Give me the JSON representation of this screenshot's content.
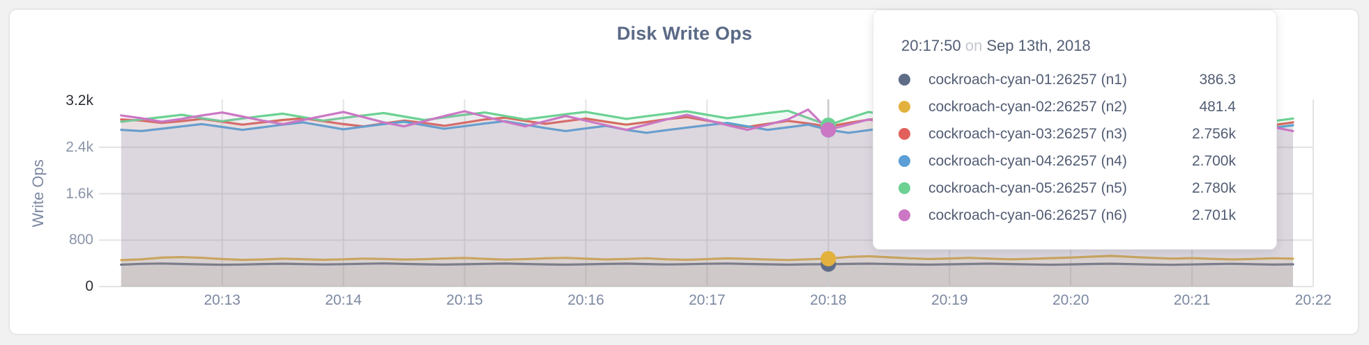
{
  "chart_data": {
    "type": "area",
    "title": "Disk Write Ops",
    "ylabel": "Write Ops",
    "ylim": [
      0,
      3200
    ],
    "grid": true,
    "legend_position": "tooltip",
    "colors": {
      "grid": "#e3e3e4",
      "hover_line": "#c9c9cb",
      "axis_text": "#8a94a8",
      "axis_text_emphasis": "#2b2e35"
    },
    "y_ticks": [
      {
        "label": "0",
        "value": 0,
        "emph": true
      },
      {
        "label": "800",
        "value": 800,
        "emph": false
      },
      {
        "label": "1.6k",
        "value": 1600,
        "emph": false
      },
      {
        "label": "2.4k",
        "value": 2400,
        "emph": false
      },
      {
        "label": "3.2k",
        "value": 3200,
        "emph": true
      }
    ],
    "x_ticks": [
      {
        "label": "20:13",
        "sec": 780
      },
      {
        "label": "20:14",
        "sec": 840
      },
      {
        "label": "20:15",
        "sec": 900
      },
      {
        "label": "20:16",
        "sec": 960
      },
      {
        "label": "20:17",
        "sec": 1020
      },
      {
        "label": "20:18",
        "sec": 1080
      },
      {
        "label": "20:19",
        "sec": 1140
      },
      {
        "label": "20:20",
        "sec": 1200
      },
      {
        "label": "20:21",
        "sec": 1260
      },
      {
        "label": "20:22",
        "sec": 1320
      }
    ],
    "x_domain_sec": [
      728,
      1320
    ],
    "point_start_sec": 730,
    "point_step_sec": 10,
    "hover_index": 35,
    "series": [
      {
        "name": "cockroach-cyan-01:26257 (n1)",
        "color": "#5F6C87",
        "values": [
          378,
          392,
          398,
          390,
          382,
          376,
          380,
          388,
          394,
          387,
          381,
          386,
          393,
          399,
          391,
          384,
          379,
          385,
          392,
          397,
          389,
          382,
          377,
          384,
          391,
          396,
          388,
          381,
          386,
          393,
          398,
          390,
          383,
          378,
          384,
          386.3,
          391,
          396,
          389,
          382,
          377,
          383,
          390,
          395,
          388,
          381,
          376,
          382,
          389,
          394,
          387,
          380,
          375,
          381,
          388,
          393,
          386,
          379,
          383
        ]
      },
      {
        "name": "cockroach-cyan-02:26257 (n2)",
        "color": "#E3B13E",
        "values": [
          455,
          470,
          498,
          508,
          495,
          475,
          460,
          468,
          480,
          472,
          462,
          470,
          482,
          476,
          466,
          472,
          484,
          492,
          478,
          465,
          473,
          486,
          495,
          480,
          468,
          476,
          488,
          470,
          462,
          474,
          486,
          478,
          466,
          458,
          470,
          481.4,
          510,
          522,
          505,
          488,
          475,
          484,
          495,
          482,
          470,
          478,
          490,
          500,
          515,
          528,
          512,
          495,
          482,
          490,
          478,
          468,
          476,
          488,
          480
        ]
      },
      {
        "name": "cockroach-cyan-03:26257 (n3)",
        "color": "#E2605C",
        "values": [
          2880,
          2860,
          2820,
          2850,
          2890,
          2840,
          2790,
          2830,
          2870,
          2900,
          2850,
          2800,
          2760,
          2810,
          2860,
          2820,
          2770,
          2825,
          2880,
          2910,
          2855,
          2805,
          2850,
          2895,
          2840,
          2790,
          2835,
          2885,
          2920,
          2860,
          2800,
          2750,
          2805,
          2855,
          2810,
          2756,
          2820,
          2875,
          2915,
          2860,
          2810,
          2855,
          2900,
          2845,
          2795,
          2840,
          2890,
          2930,
          2870,
          2815,
          2860,
          2905,
          2850,
          2800,
          2845,
          2890,
          2835,
          2780,
          2830
        ]
      },
      {
        "name": "cockroach-cyan-04:26257 (n4)",
        "color": "#5C9FD6",
        "values": [
          2700,
          2680,
          2720,
          2760,
          2800,
          2750,
          2700,
          2745,
          2790,
          2830,
          2770,
          2710,
          2755,
          2800,
          2840,
          2780,
          2720,
          2765,
          2810,
          2850,
          2790,
          2730,
          2680,
          2725,
          2770,
          2700,
          2650,
          2695,
          2740,
          2780,
          2820,
          2760,
          2700,
          2745,
          2790,
          2700,
          2650,
          2695,
          2740,
          2785,
          2825,
          2765,
          2705,
          2750,
          2795,
          2835,
          2775,
          2715,
          2760,
          2805,
          2845,
          2785,
          2725,
          2770,
          2815,
          2855,
          2795,
          2735,
          2780
        ]
      },
      {
        "name": "cockroach-cyan-05:26257 (n5)",
        "color": "#6CD193",
        "values": [
          2840,
          2880,
          2920,
          2960,
          2900,
          2850,
          2895,
          2940,
          2980,
          2920,
          2860,
          2905,
          2950,
          2990,
          2930,
          2870,
          2915,
          2960,
          3000,
          2940,
          2880,
          2925,
          2970,
          3010,
          2950,
          2890,
          2935,
          2980,
          3020,
          2960,
          2900,
          2945,
          2990,
          3030,
          2905,
          2780,
          2900,
          3010,
          2950,
          2890,
          2935,
          2980,
          2920,
          2700,
          2860,
          2950,
          2990,
          2930,
          2870,
          2915,
          2960,
          3000,
          2940,
          2880,
          2925,
          2970,
          2910,
          2850,
          2895
        ]
      },
      {
        "name": "cockroach-cyan-06:26257 (n6)",
        "color": "#CB77C4",
        "values": [
          2950,
          2900,
          2840,
          2890,
          2950,
          3000,
          2930,
          2860,
          2800,
          2870,
          2940,
          3010,
          2920,
          2830,
          2760,
          2850,
          2940,
          3020,
          2930,
          2840,
          2760,
          2850,
          2940,
          2860,
          2780,
          2700,
          2790,
          2880,
          2960,
          2870,
          2780,
          2700,
          2790,
          2880,
          3050,
          2701,
          2790,
          2880,
          2800,
          2720,
          2650,
          2740,
          2830,
          2910,
          2820,
          2730,
          2660,
          2750,
          2840,
          2920,
          2830,
          2740,
          2670,
          2760,
          2850,
          2930,
          2840,
          2750,
          2680
        ]
      }
    ]
  },
  "tooltip": {
    "time": "20:17:50",
    "on_word": "on",
    "date": "Sep 13th, 2018",
    "rows": [
      {
        "name": "cockroach-cyan-01:26257 (n1)",
        "value": "386.3",
        "color": "#5F6C87"
      },
      {
        "name": "cockroach-cyan-02:26257 (n2)",
        "value": "481.4",
        "color": "#E3B13E"
      },
      {
        "name": "cockroach-cyan-03:26257 (n3)",
        "value": "2.756k",
        "color": "#E2605C"
      },
      {
        "name": "cockroach-cyan-04:26257 (n4)",
        "value": "2.700k",
        "color": "#5C9FD6"
      },
      {
        "name": "cockroach-cyan-05:26257 (n5)",
        "value": "2.780k",
        "color": "#6CD193"
      },
      {
        "name": "cockroach-cyan-06:26257 (n6)",
        "value": "2.701k",
        "color": "#CB77C4"
      }
    ]
  }
}
